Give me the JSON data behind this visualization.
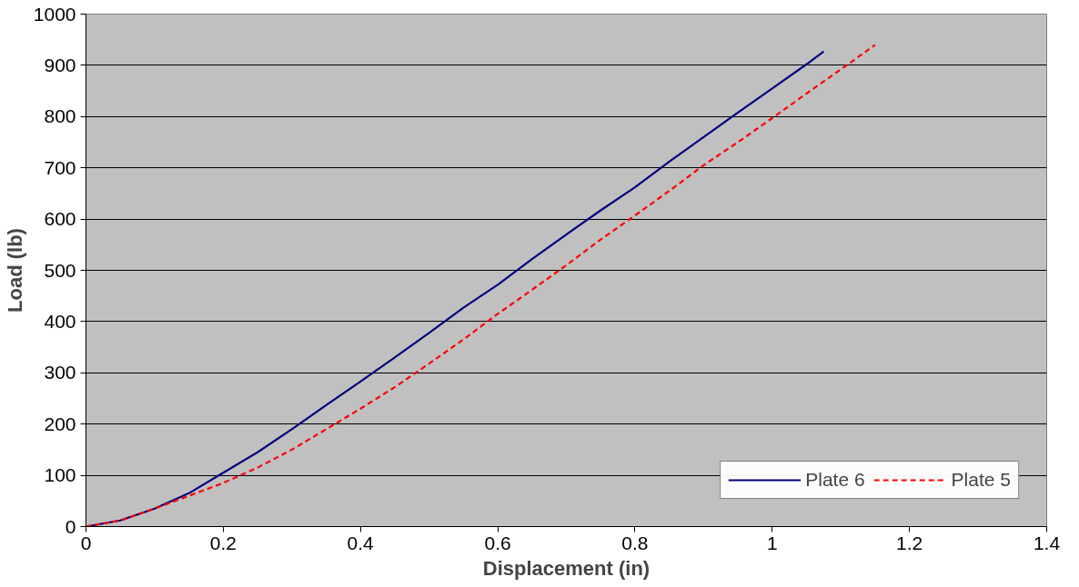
{
  "chart_data": {
    "type": "line",
    "xlabel": "Displacement (in)",
    "ylabel": "Load (lb)",
    "xlim": [
      0,
      1.4
    ],
    "xticks": [
      0,
      0.2,
      0.4,
      0.6,
      0.8,
      1,
      1.2,
      1.4
    ],
    "ylim": [
      0,
      1000
    ],
    "yticks": [
      0,
      100,
      200,
      300,
      400,
      500,
      600,
      700,
      800,
      900,
      1000
    ],
    "grid": "y",
    "legend": "bottom right",
    "marker": "none",
    "series": [
      {
        "name": "Plate 6",
        "color": "#000080",
        "line_style": "solid",
        "x": [
          0,
          0.05,
          0.1,
          0.15,
          0.2,
          0.25,
          0.3,
          0.35,
          0.4,
          0.45,
          0.5,
          0.55,
          0.6,
          0.65,
          0.7,
          0.75,
          0.8,
          0.85,
          0.9,
          0.95,
          1.0,
          1.05,
          1.075
        ],
        "values": [
          0,
          12,
          35,
          65,
          105,
          145,
          190,
          237,
          283,
          330,
          378,
          427,
          472,
          522,
          570,
          617,
          662,
          712,
          760,
          808,
          855,
          902,
          927
        ]
      },
      {
        "name": "Plate 5",
        "color": "#ff0000",
        "line_style": "dashed",
        "x": [
          0,
          0.05,
          0.1,
          0.15,
          0.2,
          0.25,
          0.3,
          0.35,
          0.4,
          0.45,
          0.5,
          0.55,
          0.6,
          0.65,
          0.7,
          0.75,
          0.8,
          0.85,
          0.9,
          0.95,
          1.0,
          1.05,
          1.1,
          1.15
        ],
        "values": [
          0,
          12,
          35,
          60,
          85,
          115,
          150,
          190,
          230,
          272,
          318,
          365,
          415,
          462,
          510,
          560,
          607,
          655,
          705,
          750,
          797,
          845,
          892,
          940
        ]
      }
    ]
  }
}
